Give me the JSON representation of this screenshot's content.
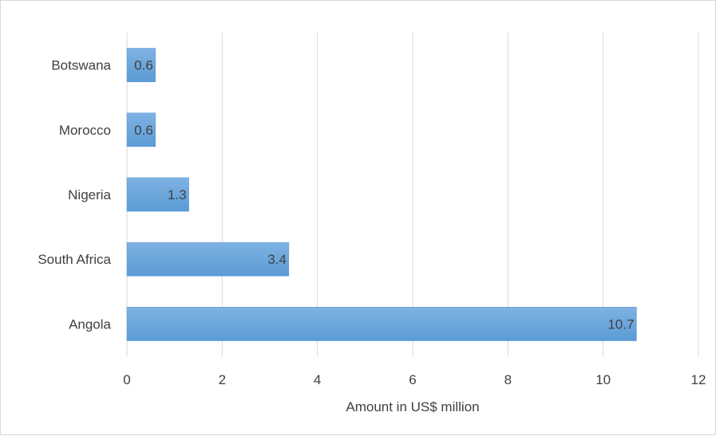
{
  "chart_data": {
    "type": "bar",
    "orientation": "horizontal",
    "categories": [
      "Botswana",
      "Morocco",
      "Nigeria",
      "South Africa",
      "Angola"
    ],
    "values": [
      0.6,
      0.6,
      1.3,
      3.4,
      10.7
    ],
    "data_labels": [
      "0.6",
      "0.6",
      "1.3",
      "3.4",
      "10.7"
    ],
    "title": "",
    "xlabel": "Amount in US$ million",
    "ylabel": "",
    "xlim": [
      0,
      12
    ],
    "x_ticks": [
      "0",
      "2",
      "4",
      "6",
      "8",
      "10",
      "12"
    ],
    "grid": "vertical",
    "legend": "none",
    "bar_color": "#5b9bd5",
    "bar_color_light": "#7fb2e3"
  }
}
